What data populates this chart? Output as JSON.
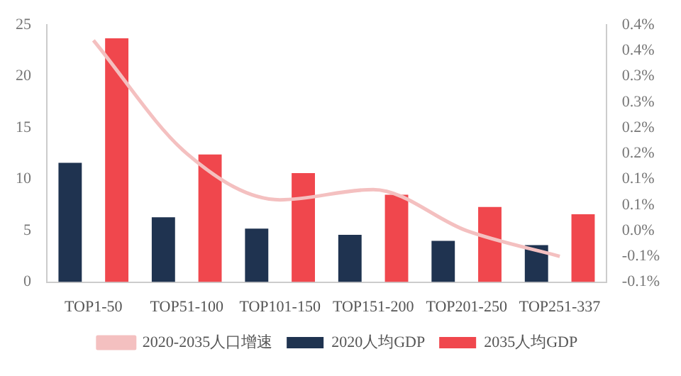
{
  "chart_data": {
    "type": "bar",
    "categories": [
      "TOP1-50",
      "TOP51-100",
      "TOP101-150",
      "TOP151-200",
      "TOP201-250",
      "TOP251-337"
    ],
    "series": [
      {
        "name": "2020人均GDP",
        "color": "#1f3350",
        "values": [
          11.6,
          6.3,
          5.2,
          4.6,
          4.0,
          3.6
        ]
      },
      {
        "name": "2035人均GDP",
        "color": "#f0474d",
        "values": [
          23.7,
          12.4,
          10.6,
          8.5,
          7.3,
          6.6
        ]
      },
      {
        "name": "2020-2035人口增速",
        "type": "line",
        "axis": "y2",
        "color": "#f4c0c0",
        "values": [
          0.37,
          0.15,
          0.06,
          0.08,
          0.0,
          -0.05
        ]
      }
    ],
    "ylim": [
      0,
      25
    ],
    "yticks": [
      0,
      5,
      10,
      15,
      20,
      25
    ],
    "y2lim": [
      -0.1,
      0.4
    ],
    "y2ticks": [
      {
        "value": -0.1,
        "label": "-0.1%"
      },
      {
        "value": -0.05,
        "label": "-0.1%"
      },
      {
        "value": 0,
        "label": "0.0%"
      },
      {
        "value": 0.05,
        "label": "0.1%"
      },
      {
        "value": 0.1,
        "label": "0.1%"
      },
      {
        "value": 0.15,
        "label": "0.2%"
      },
      {
        "value": 0.2,
        "label": "0.2%"
      },
      {
        "value": 0.25,
        "label": "0.3%"
      },
      {
        "value": 0.3,
        "label": "0.3%"
      },
      {
        "value": 0.35,
        "label": "0.4%"
      },
      {
        "value": 0.4,
        "label": "0.4%"
      }
    ],
    "grid": false,
    "legend": "bottom",
    "marker": "none"
  }
}
